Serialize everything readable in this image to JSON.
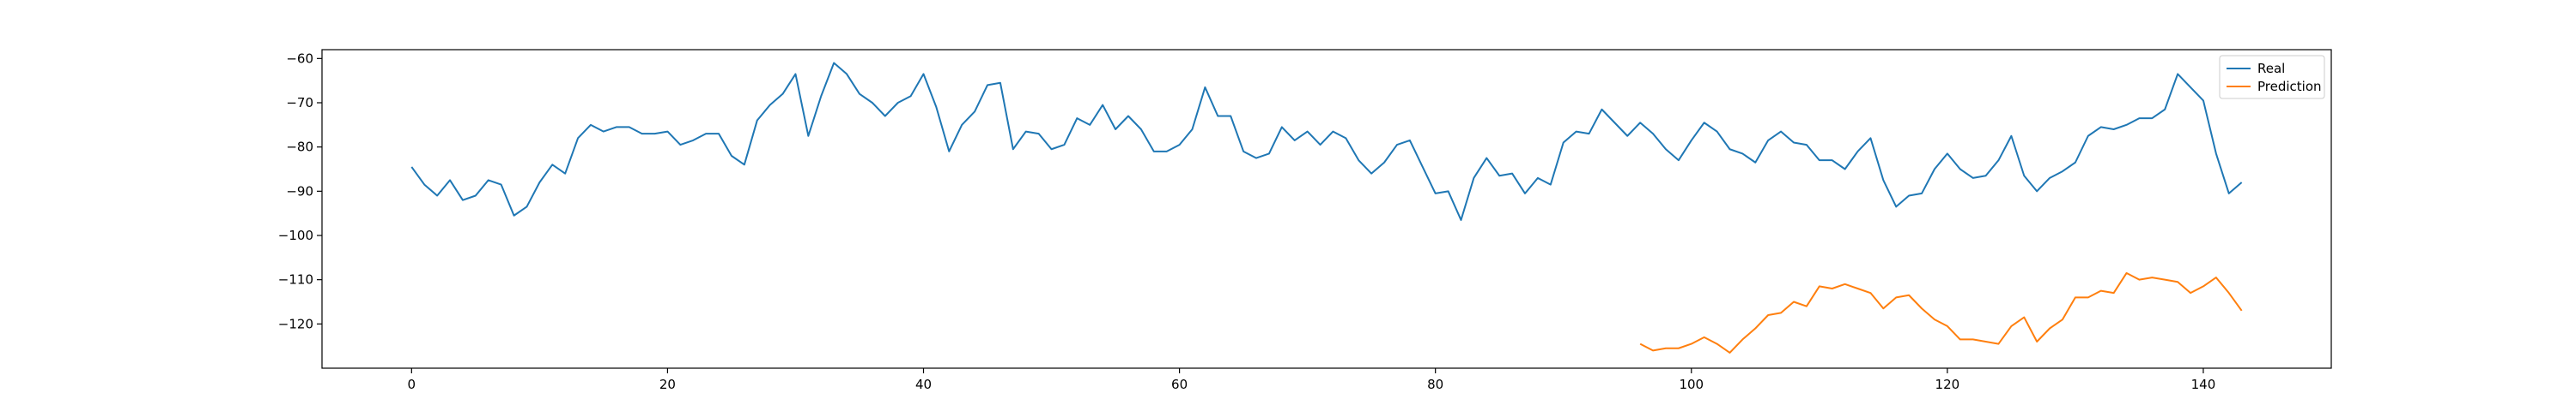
{
  "chart_data": {
    "type": "line",
    "title": "",
    "xlabel": "",
    "ylabel": "",
    "xlim": [
      -7,
      150
    ],
    "ylim": [
      -130,
      -58
    ],
    "xticks": [
      0,
      20,
      40,
      60,
      80,
      100,
      120,
      140
    ],
    "yticks": [
      -60,
      -70,
      -80,
      -90,
      -100,
      -110,
      -120
    ],
    "grid": false,
    "legend_position": "top-right",
    "series": [
      {
        "name": "Real",
        "color": "#1f77b4",
        "x_start": 0,
        "values": [
          -84.5,
          -88.5,
          -91,
          -87.5,
          -92,
          -91,
          -87.5,
          -88.5,
          -95.5,
          -93.5,
          -88,
          -84,
          -86,
          -78,
          -75,
          -76.5,
          -75.5,
          -75.5,
          -77,
          -77,
          -76.5,
          -79.5,
          -78.5,
          -77,
          -77,
          -82,
          -84,
          -74,
          -70.5,
          -68,
          -63.5,
          -77.5,
          -68.5,
          -61,
          -63.5,
          -68,
          -70,
          -73,
          -70,
          -68.5,
          -63.5,
          -71,
          -81,
          -75,
          -72,
          -66,
          -65.5,
          -80.5,
          -76.5,
          -77,
          -80.5,
          -79.5,
          -73.5,
          -75,
          -70.5,
          -76,
          -73,
          -76,
          -81,
          -81,
          -79.5,
          -76,
          -66.5,
          -73,
          -73,
          -81,
          -82.5,
          -81.5,
          -75.5,
          -78.5,
          -76.5,
          -79.5,
          -76.5,
          -78,
          -83,
          -86,
          -83.5,
          -79.5,
          -78.5,
          -84.5,
          -90.5,
          -90,
          -96.5,
          -87,
          -82.5,
          -86.5,
          -86,
          -90.5,
          -87,
          -88.5,
          -79,
          -76.5,
          -77,
          -71.5,
          -74.5,
          -77.5,
          -74.5,
          -77,
          -80.5,
          -83,
          -78.5,
          -74.5,
          -76.5,
          -80.5,
          -81.5,
          -83.5,
          -78.5,
          -76.5,
          -79,
          -79.5,
          -83,
          -83,
          -85,
          -81,
          -78,
          -87.5,
          -93.5,
          -91,
          -90.5,
          -85,
          -81.5,
          -85,
          -87,
          -86.5,
          -83,
          -77.5,
          -86.5,
          -90,
          -87,
          -85.5,
          -83.5,
          -77.5,
          -75.5,
          -76,
          -75,
          -73.5,
          -73.5,
          -71.5,
          -63.5,
          -66.5,
          -69.5,
          -81.5,
          -90.5,
          -88
        ]
      },
      {
        "name": "Prediction",
        "color": "#ff7f0e",
        "x_start": 96,
        "values": [
          -124.5,
          -126,
          -125.5,
          -125.5,
          -124.5,
          -123,
          -124.5,
          -126.5,
          -123.5,
          -121,
          -118,
          -117.5,
          -115,
          -116,
          -111.5,
          -112,
          -111,
          -112,
          -113,
          -116.5,
          -114,
          -113.5,
          -116.5,
          -119,
          -120.5,
          -123.5,
          -123.5,
          -124,
          -124.5,
          -120.5,
          -118.5,
          -124,
          -121,
          -119,
          -114,
          -114,
          -112.5,
          -113,
          -108.5,
          -110,
          -109.5,
          -110,
          -110.5,
          -113,
          -111.5,
          -109.5,
          -113,
          -117
        ]
      }
    ]
  }
}
